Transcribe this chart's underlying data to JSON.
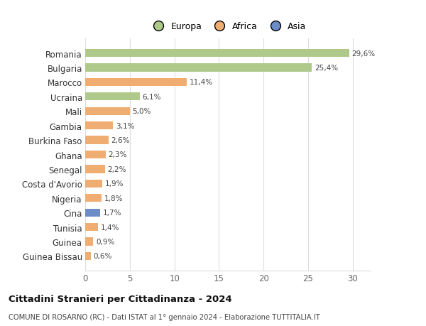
{
  "categories": [
    "Guinea Bissau",
    "Guinea",
    "Tunisia",
    "Cina",
    "Nigeria",
    "Costa d'Avorio",
    "Senegal",
    "Ghana",
    "Burkina Faso",
    "Gambia",
    "Mali",
    "Ucraina",
    "Marocco",
    "Bulgaria",
    "Romania"
  ],
  "values": [
    0.6,
    0.9,
    1.4,
    1.7,
    1.8,
    1.9,
    2.2,
    2.3,
    2.6,
    3.1,
    5.0,
    6.1,
    11.4,
    25.4,
    29.6
  ],
  "labels": [
    "0,6%",
    "0,9%",
    "1,4%",
    "1,7%",
    "1,8%",
    "1,9%",
    "2,2%",
    "2,3%",
    "2,6%",
    "3,1%",
    "5,0%",
    "6,1%",
    "11,4%",
    "25,4%",
    "29,6%"
  ],
  "continent": [
    "Africa",
    "Africa",
    "Africa",
    "Asia",
    "Africa",
    "Africa",
    "Africa",
    "Africa",
    "Africa",
    "Africa",
    "Africa",
    "Europa",
    "Africa",
    "Europa",
    "Europa"
  ],
  "colors": {
    "Europa": "#aec98a",
    "Africa": "#f0ad72",
    "Asia": "#6b8cc7"
  },
  "title": "Cittadini Stranieri per Cittadinanza - 2024",
  "subtitle": "COMUNE DI ROSARNO (RC) - Dati ISTAT al 1° gennaio 2024 - Elaborazione TUTTITALIA.IT",
  "xlim": [
    0,
    32
  ],
  "xticks": [
    0,
    5,
    10,
    15,
    20,
    25,
    30
  ],
  "background_color": "#ffffff",
  "grid_color": "#dddddd",
  "bar_height": 0.55
}
